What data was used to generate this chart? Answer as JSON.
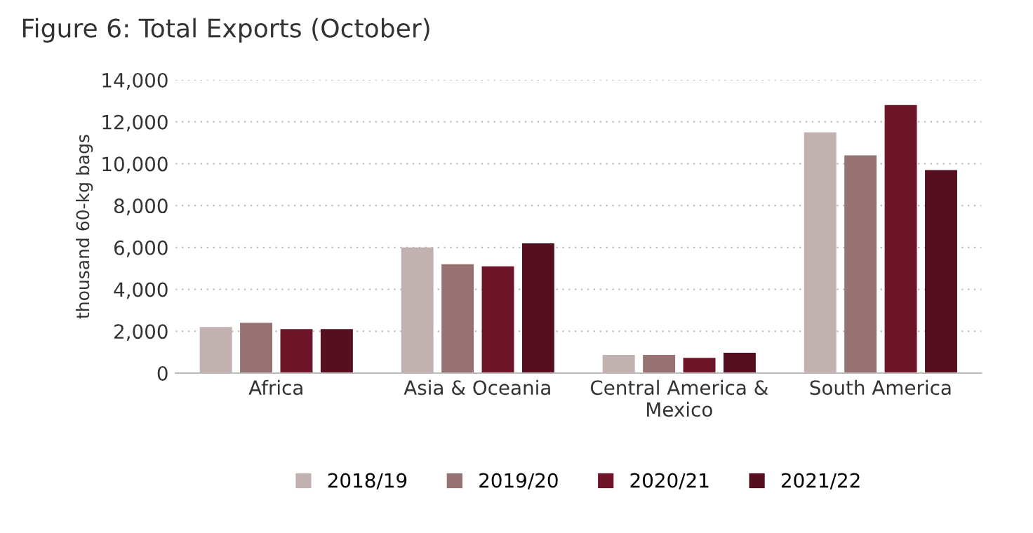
{
  "chart_data": {
    "type": "bar",
    "title": "Figure 6: Total Exports (October)",
    "ylabel": "thousand 60-kg bags",
    "categories": [
      "Africa",
      "Asia & Oceania",
      "Central America &\nMexico",
      "South America"
    ],
    "series": [
      {
        "name": "2018/19",
        "color": "#c2b1b1",
        "values": [
          2200,
          6000,
          870,
          11500
        ]
      },
      {
        "name": "2019/20",
        "color": "#977272",
        "values": [
          2400,
          5200,
          870,
          10400
        ]
      },
      {
        "name": "2020/21",
        "color": "#6e1529",
        "values": [
          2100,
          5100,
          730,
          12800
        ]
      },
      {
        "name": "2021/22",
        "color": "#560f1f",
        "values": [
          2100,
          6200,
          970,
          9700
        ]
      }
    ],
    "ylim": [
      0,
      14000
    ],
    "yticks": [
      {
        "value": 0,
        "label": "0"
      },
      {
        "value": 2000,
        "label": "2,000"
      },
      {
        "value": 4000,
        "label": "4,000"
      },
      {
        "value": 6000,
        "label": "6,000"
      },
      {
        "value": 8000,
        "label": "8,000"
      },
      {
        "value": 10000,
        "label": "10,000"
      },
      {
        "value": 12000,
        "label": "12,000"
      },
      {
        "value": 14000,
        "label": "14,000"
      }
    ],
    "grid": "y",
    "legend": "bottom"
  }
}
